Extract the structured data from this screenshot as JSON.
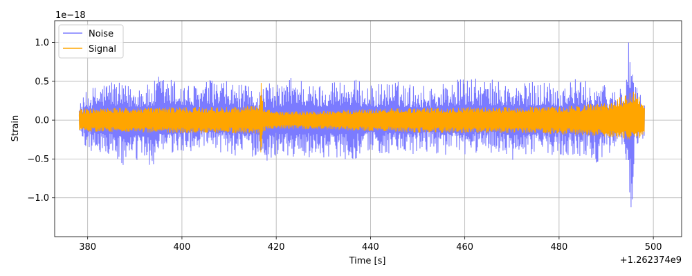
{
  "chart_data": {
    "type": "line",
    "title": "",
    "xlabel": "Time [s]",
    "ylabel": "Strain",
    "x_offset_label": "+1.262374e9",
    "y_scale_label": "1e−18",
    "xlim": [
      373,
      506
    ],
    "ylim": [
      -1.5,
      1.28
    ],
    "x_ticks": [
      380,
      400,
      420,
      440,
      460,
      480,
      500
    ],
    "x_tick_labels": [
      "380",
      "400",
      "420",
      "440",
      "460",
      "480",
      "500"
    ],
    "y_ticks": [
      -1.0,
      -0.5,
      0.0,
      0.5,
      1.0
    ],
    "y_tick_labels": [
      "−1.0",
      "−0.5",
      "0.0",
      "0.5",
      "1.0"
    ],
    "grid": true,
    "legend_position": "upper-left",
    "colors": {
      "noise": "#7b7bff",
      "signal": "#ffa500"
    },
    "series": [
      {
        "name": "Noise",
        "color": "#7b7bff",
        "x_range": [
          378.2,
          498.2
        ],
        "envelope_points": [
          [
            378.2,
            0.21,
            -0.18
          ],
          [
            380,
            0.4,
            -0.4
          ],
          [
            385,
            0.55,
            -0.48
          ],
          [
            387.5,
            0.45,
            -0.62
          ],
          [
            391,
            0.49,
            -0.55
          ],
          [
            393.5,
            0.45,
            -0.63
          ],
          [
            395,
            0.59,
            -0.5
          ],
          [
            400,
            0.51,
            -0.45
          ],
          [
            402,
            0.45,
            -0.4
          ],
          [
            406,
            0.53,
            -0.42
          ],
          [
            410,
            0.5,
            -0.45
          ],
          [
            414,
            0.44,
            -0.48
          ],
          [
            416.8,
            0.41,
            -0.48
          ],
          [
            418,
            0.5,
            -0.58
          ],
          [
            420,
            0.45,
            -0.45
          ],
          [
            424,
            0.61,
            -0.5
          ],
          [
            428,
            0.45,
            -0.48
          ],
          [
            432,
            0.54,
            -0.48
          ],
          [
            436,
            0.55,
            -0.52
          ],
          [
            440,
            0.45,
            -0.42
          ],
          [
            444,
            0.52,
            -0.45
          ],
          [
            448,
            0.48,
            -0.49
          ],
          [
            452,
            0.45,
            -0.42
          ],
          [
            456,
            0.5,
            -0.45
          ],
          [
            460,
            0.55,
            -0.48
          ],
          [
            464,
            0.53,
            -0.4
          ],
          [
            468,
            0.52,
            -0.45
          ],
          [
            470,
            0.45,
            -0.57
          ],
          [
            474,
            0.5,
            -0.45
          ],
          [
            478,
            0.54,
            -0.45
          ],
          [
            480,
            0.48,
            -0.44
          ],
          [
            484,
            0.55,
            -0.5
          ],
          [
            486,
            0.5,
            -0.45
          ],
          [
            488,
            0.52,
            -0.55
          ],
          [
            490,
            0.45,
            -0.48
          ],
          [
            492,
            0.4,
            -0.32
          ],
          [
            494,
            0.55,
            -0.4
          ],
          [
            495,
            1.16,
            -1.37
          ],
          [
            495.5,
            0.9,
            -1.2
          ],
          [
            496,
            0.45,
            -0.35
          ],
          [
            498.2,
            0.3,
            -0.22
          ]
        ]
      },
      {
        "name": "Signal",
        "color": "#ffa500",
        "x_range": [
          378.2,
          498.2
        ],
        "envelope_points": [
          [
            378.2,
            0.15,
            -0.15
          ],
          [
            390,
            0.16,
            -0.16
          ],
          [
            400,
            0.17,
            -0.17
          ],
          [
            410,
            0.17,
            -0.17
          ],
          [
            416.5,
            0.2,
            -0.18
          ],
          [
            416.8,
            0.63,
            -0.5
          ],
          [
            417.2,
            0.16,
            -0.15
          ],
          [
            420,
            0.11,
            -0.11
          ],
          [
            430,
            0.12,
            -0.12
          ],
          [
            440,
            0.15,
            -0.15
          ],
          [
            450,
            0.16,
            -0.16
          ],
          [
            460,
            0.17,
            -0.17
          ],
          [
            470,
            0.17,
            -0.17
          ],
          [
            480,
            0.18,
            -0.18
          ],
          [
            490,
            0.22,
            -0.22
          ],
          [
            496.5,
            0.39,
            -0.28
          ],
          [
            498.2,
            0.18,
            -0.18
          ]
        ]
      }
    ]
  },
  "legend": {
    "items": [
      {
        "label": "Noise",
        "color": "#7b7bff"
      },
      {
        "label": "Signal",
        "color": "#ffa500"
      }
    ]
  }
}
